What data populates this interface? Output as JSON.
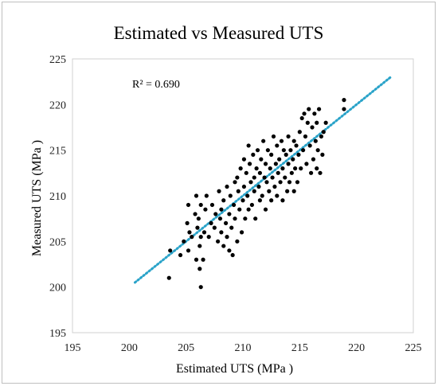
{
  "chart_data": {
    "type": "scatter",
    "title": "Estimated vs Measured UTS",
    "xlabel": "Estimated UTS (MPa )",
    "ylabel": "Measured UTS (MPa )",
    "xlim": [
      195,
      225
    ],
    "ylim": [
      195,
      225
    ],
    "xticks": [
      "195",
      "200",
      "205",
      "210",
      "215",
      "220",
      "225"
    ],
    "yticks": [
      "195",
      "200",
      "205",
      "210",
      "215",
      "220",
      "225"
    ],
    "grid": false,
    "legend": "none",
    "annotation": "R² = 0.690",
    "trendline": {
      "style": "dotted",
      "color": "#2aa3c9",
      "x": [
        200.5,
        223
      ],
      "y": [
        200.5,
        223
      ]
    },
    "marker_color": "#000000",
    "points": [
      [
        203.5,
        201.0
      ],
      [
        203.6,
        204.0
      ],
      [
        206.3,
        200.0
      ],
      [
        206.2,
        202.0
      ],
      [
        204.5,
        203.5
      ],
      [
        204.8,
        205.0
      ],
      [
        205.2,
        204.0
      ],
      [
        205.3,
        206.0
      ],
      [
        205.5,
        205.5
      ],
      [
        205.9,
        203.0
      ],
      [
        205.1,
        207.0
      ],
      [
        205.2,
        209.0
      ],
      [
        205.8,
        208.0
      ],
      [
        205.9,
        210.0
      ],
      [
        206.0,
        206.5
      ],
      [
        206.1,
        207.5
      ],
      [
        206.2,
        204.5
      ],
      [
        206.3,
        205.5
      ],
      [
        206.3,
        209.0
      ],
      [
        206.5,
        203.0
      ],
      [
        206.6,
        206.0
      ],
      [
        206.7,
        208.5
      ],
      [
        206.8,
        210.0
      ],
      [
        207.0,
        205.5
      ],
      [
        207.2,
        207.0
      ],
      [
        207.3,
        209.0
      ],
      [
        207.5,
        206.5
      ],
      [
        207.6,
        208.0
      ],
      [
        207.8,
        205.0
      ],
      [
        207.9,
        210.5
      ],
      [
        208.0,
        207.5
      ],
      [
        208.1,
        206.0
      ],
      [
        208.1,
        208.5
      ],
      [
        208.3,
        204.5
      ],
      [
        208.3,
        209.5
      ],
      [
        208.5,
        207.0
      ],
      [
        208.6,
        211.0
      ],
      [
        208.6,
        205.5
      ],
      [
        208.8,
        204.0
      ],
      [
        208.8,
        208.0
      ],
      [
        208.9,
        210.0
      ],
      [
        209.0,
        206.5
      ],
      [
        209.1,
        203.5
      ],
      [
        209.2,
        209.0
      ],
      [
        209.3,
        211.5
      ],
      [
        209.3,
        207.5
      ],
      [
        209.5,
        212.0
      ],
      [
        209.5,
        205.0
      ],
      [
        209.6,
        210.5
      ],
      [
        209.7,
        208.5
      ],
      [
        209.8,
        213.0
      ],
      [
        209.9,
        206.0
      ],
      [
        210.0,
        209.5
      ],
      [
        210.1,
        211.0
      ],
      [
        210.1,
        214.0
      ],
      [
        210.2,
        207.5
      ],
      [
        210.3,
        212.5
      ],
      [
        210.4,
        210.0
      ],
      [
        210.5,
        215.5
      ],
      [
        210.5,
        208.5
      ],
      [
        210.6,
        213.5
      ],
      [
        210.7,
        211.5
      ],
      [
        210.8,
        209.0
      ],
      [
        210.9,
        214.5
      ],
      [
        211.0,
        212.0
      ],
      [
        211.0,
        210.5
      ],
      [
        211.1,
        207.5
      ],
      [
        211.2,
        213.0
      ],
      [
        211.3,
        215.0
      ],
      [
        211.4,
        211.0
      ],
      [
        211.5,
        209.5
      ],
      [
        211.5,
        212.5
      ],
      [
        211.6,
        214.0
      ],
      [
        211.7,
        210.0
      ],
      [
        211.8,
        216.0
      ],
      [
        211.9,
        212.0
      ],
      [
        212.0,
        213.5
      ],
      [
        212.0,
        208.5
      ],
      [
        212.1,
        211.5
      ],
      [
        212.2,
        215.0
      ],
      [
        212.3,
        210.5
      ],
      [
        212.4,
        213.0
      ],
      [
        212.5,
        214.5
      ],
      [
        212.5,
        209.5
      ],
      [
        212.6,
        212.0
      ],
      [
        212.7,
        216.5
      ],
      [
        212.8,
        211.0
      ],
      [
        212.9,
        213.5
      ],
      [
        213.0,
        215.5
      ],
      [
        213.0,
        210.0
      ],
      [
        213.1,
        212.5
      ],
      [
        213.2,
        214.0
      ],
      [
        213.3,
        211.5
      ],
      [
        213.4,
        216.0
      ],
      [
        213.5,
        213.0
      ],
      [
        213.5,
        209.5
      ],
      [
        213.6,
        215.0
      ],
      [
        213.7,
        212.0
      ],
      [
        213.8,
        214.5
      ],
      [
        213.9,
        210.5
      ],
      [
        214.0,
        213.5
      ],
      [
        214.0,
        216.5
      ],
      [
        214.1,
        211.5
      ],
      [
        214.2,
        215.0
      ],
      [
        214.3,
        212.5
      ],
      [
        214.4,
        214.0
      ],
      [
        214.5,
        210.5
      ],
      [
        214.5,
        216.0
      ],
      [
        214.6,
        213.0
      ],
      [
        214.7,
        215.5
      ],
      [
        214.8,
        211.5
      ],
      [
        214.9,
        214.5
      ],
      [
        215.0,
        217.0
      ],
      [
        215.1,
        213.0
      ],
      [
        215.2,
        218.5
      ],
      [
        215.3,
        215.0
      ],
      [
        215.4,
        219.0
      ],
      [
        215.5,
        216.5
      ],
      [
        215.6,
        213.5
      ],
      [
        215.7,
        218.0
      ],
      [
        215.8,
        219.5
      ],
      [
        215.9,
        215.5
      ],
      [
        216.0,
        212.5
      ],
      [
        216.1,
        217.5
      ],
      [
        216.2,
        214.0
      ],
      [
        216.3,
        219.0
      ],
      [
        216.4,
        216.0
      ],
      [
        216.5,
        218.0
      ],
      [
        216.5,
        213.0
      ],
      [
        216.6,
        215.0
      ],
      [
        216.7,
        219.5
      ],
      [
        216.8,
        212.5
      ],
      [
        216.9,
        216.5
      ],
      [
        217.0,
        214.5
      ],
      [
        217.1,
        217.0
      ],
      [
        217.3,
        218.0
      ],
      [
        218.9,
        220.5
      ],
      [
        218.9,
        219.5
      ]
    ]
  }
}
